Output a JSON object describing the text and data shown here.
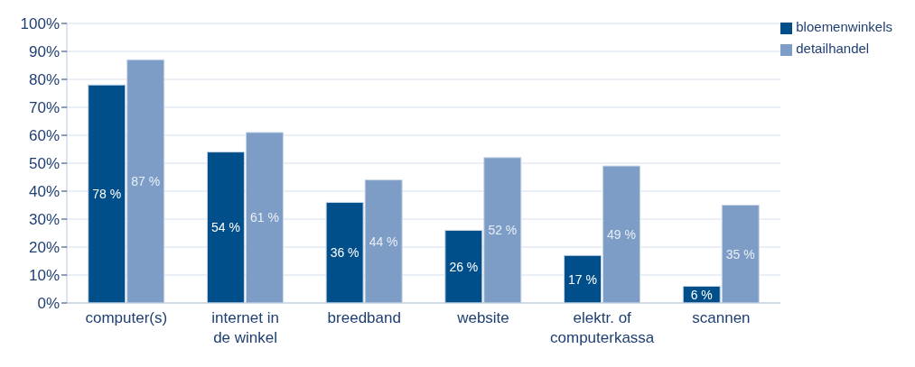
{
  "chart_data": {
    "type": "bar",
    "categories": [
      "computer(s)",
      "internet in de winkel",
      "breedband",
      "website",
      "elektr. of computerkassa",
      "scannen"
    ],
    "series": [
      {
        "name": "bloemenwinkels",
        "color": "#004f8b",
        "values": [
          78,
          54,
          36,
          26,
          17,
          6
        ],
        "value_labels": [
          "78 %",
          "54 %",
          "36 %",
          "26 %",
          "17 %",
          "6 %"
        ]
      },
      {
        "name": "detailhandel",
        "color": "#7d9dc6",
        "values": [
          87,
          61,
          44,
          52,
          49,
          35
        ],
        "value_labels": [
          "87 %",
          "61 %",
          "44 %",
          "52 %",
          "49 %",
          "35 %"
        ]
      }
    ],
    "ylim": [
      0,
      100
    ],
    "yticks": [
      {
        "value": 0,
        "label": "0%"
      },
      {
        "value": 10,
        "label": "10%"
      },
      {
        "value": 20,
        "label": "20%"
      },
      {
        "value": 30,
        "label": "30%"
      },
      {
        "value": 40,
        "label": "40%"
      },
      {
        "value": 50,
        "label": "50%"
      },
      {
        "value": 60,
        "label": "60%"
      },
      {
        "value": 70,
        "label": "70%"
      },
      {
        "value": 80,
        "label": "80%"
      },
      {
        "value": 90,
        "label": "90%"
      },
      {
        "value": 100,
        "label": "100%"
      }
    ],
    "grid": "y",
    "legend": "top right"
  }
}
